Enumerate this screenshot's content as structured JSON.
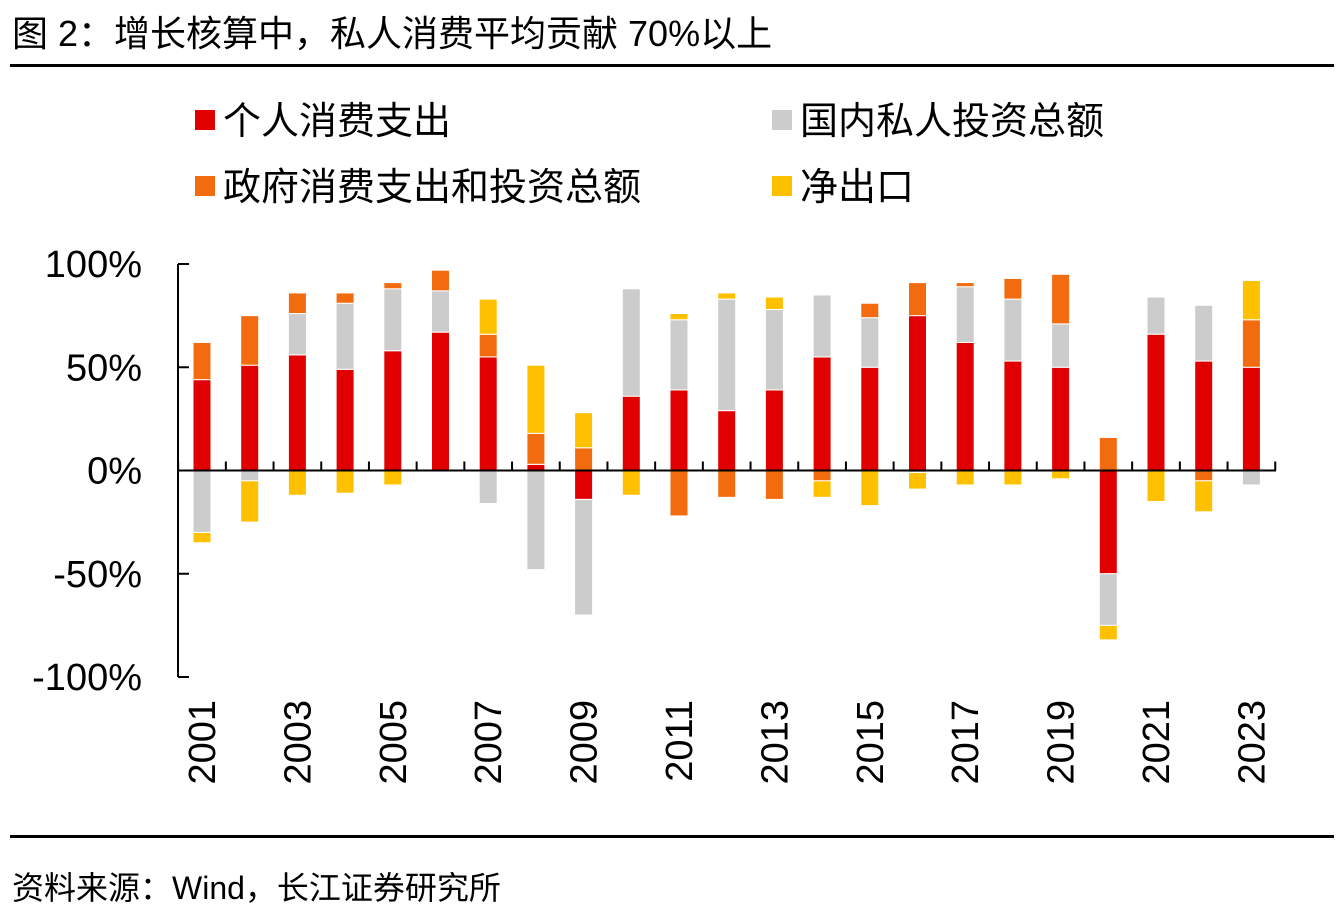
{
  "figure": {
    "title": "图 2：增长核算中，私人消费平均贡献 70%以上",
    "source": "资料来源：Wind，长江证券研究所"
  },
  "chart_data": {
    "type": "bar",
    "stacked": true,
    "categories": [
      "2001",
      "2002",
      "2003",
      "2004",
      "2005",
      "2006",
      "2007",
      "2008",
      "2009",
      "2010",
      "2011",
      "2012",
      "2013",
      "2014",
      "2015",
      "2016",
      "2017",
      "2018",
      "2019",
      "2020",
      "2021",
      "2022",
      "2023"
    ],
    "x_tick_labels": [
      "2001",
      "2003",
      "2005",
      "2007",
      "2009",
      "2011",
      "2013",
      "2015",
      "2017",
      "2019",
      "2021",
      "2023"
    ],
    "y_tick_labels": [
      "100%",
      "50%",
      "0%",
      "-50%",
      "-100%"
    ],
    "y_ticks": [
      100,
      50,
      0,
      -50,
      -100
    ],
    "ylim": [
      -100,
      100
    ],
    "legend_position": "top",
    "series": [
      {
        "name": "个人消费支出",
        "color": "#E00000",
        "values": [
          44,
          51,
          56,
          49,
          58,
          67,
          55,
          3,
          -14,
          36,
          39,
          29,
          39,
          55,
          50,
          75,
          62,
          53,
          50,
          -50,
          66,
          53,
          50
        ]
      },
      {
        "name": "国内私人投资总额",
        "color": "#CCCCCC",
        "values": [
          -30,
          -5,
          20,
          32,
          30,
          20,
          -16,
          -48,
          -56,
          52,
          34,
          54,
          39,
          30,
          24,
          -1,
          27,
          30,
          21,
          -25,
          18,
          27,
          -7
        ]
      },
      {
        "name": "政府消费支出和投资总额",
        "color": "#F26B0F",
        "values": [
          18,
          24,
          10,
          5,
          3,
          10,
          11,
          15,
          11,
          0,
          -22,
          -13,
          -14,
          -5,
          7,
          16,
          2,
          10,
          24,
          16,
          0,
          -5,
          23
        ]
      },
      {
        "name": "净出口",
        "color": "#FFC000",
        "values": [
          -5,
          -20,
          -12,
          -11,
          -7,
          0,
          17,
          33,
          17,
          -12,
          3,
          3,
          6,
          -8,
          -17,
          -8,
          -7,
          -7,
          -4,
          -7,
          -15,
          -15,
          19
        ]
      }
    ]
  }
}
